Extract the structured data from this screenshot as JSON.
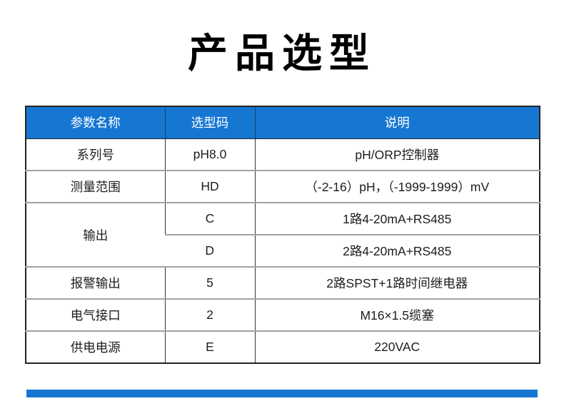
{
  "page": {
    "title": "产品选型"
  },
  "table": {
    "headers": [
      "参数名称",
      "选型码",
      "说明"
    ],
    "rows": [
      {
        "param": "系列号",
        "code": "pH8.0",
        "desc": "pH/ORP控制器"
      },
      {
        "param": "测量范围",
        "code": "HD",
        "desc": "（-2-16）pH，（-1999-1999）mV"
      },
      {
        "param": "输出",
        "code": "C",
        "desc": "1路4-20mA+RS485"
      },
      {
        "code": "D",
        "desc": "2路4-20mA+RS485"
      },
      {
        "param": "报警输出",
        "code": "5",
        "desc": "2路SPST+1路时间继电器"
      },
      {
        "param": "电气接口",
        "code": "2",
        "desc": "M16×1.5缆塞"
      },
      {
        "param": "供电电源",
        "code": "E",
        "desc": "220VAC"
      }
    ]
  },
  "colors": {
    "header_bg": "#1677d3",
    "header_text": "#ffffff",
    "accent_bar": "#1677d3"
  }
}
